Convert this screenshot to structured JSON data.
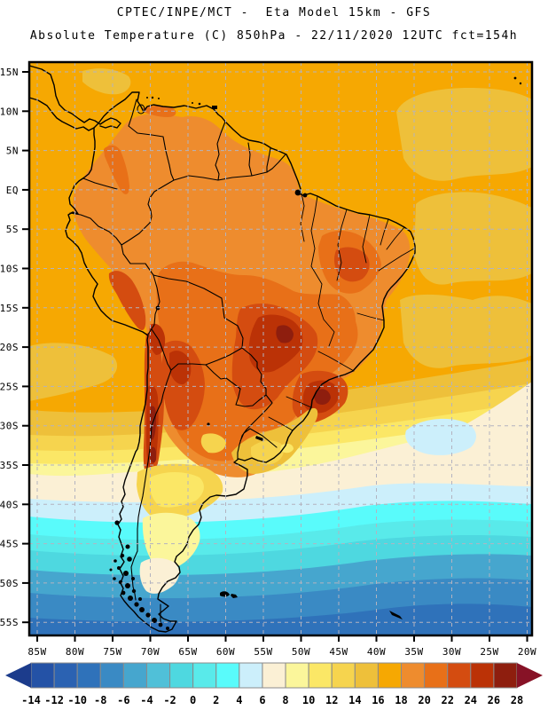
{
  "header": {
    "title_line1": "CPTEC/INPE/MCT -  Eta Model 15km - GFS",
    "title_line2": "Absolute Temperature (C) 850hPa - 22/11/2020 12UTC fct=154h"
  },
  "map": {
    "lat_labels": [
      "15N",
      "10N",
      "5N",
      "EQ",
      "5S",
      "10S",
      "15S",
      "20S",
      "25S",
      "30S",
      "35S",
      "40S",
      "45S",
      "50S",
      "55S"
    ],
    "lon_labels": [
      "85W",
      "80W",
      "75W",
      "70W",
      "65W",
      "60W",
      "55W",
      "50W",
      "45W",
      "40W",
      "35W",
      "30W",
      "25W",
      "20W"
    ],
    "grid_color": "#b3b3c0",
    "line_color": "#000000"
  },
  "colorbar": {
    "unit": "C",
    "tick_labels": [
      "-14",
      "-12",
      "-10",
      "-8",
      "-6",
      "-4",
      "-2",
      "0",
      "2",
      "4",
      "6",
      "8",
      "10",
      "12",
      "14",
      "16",
      "18",
      "20",
      "22",
      "24",
      "26",
      "28"
    ],
    "cell_colors": [
      "#2452a6",
      "#2b62b2",
      "#2f72ba",
      "#3a8ac4",
      "#46a6ce",
      "#50c0d8",
      "#4ed8e0",
      "#59eaea",
      "#59fbfb",
      "#cceffb",
      "#fbf0d5",
      "#fbf69b",
      "#fbe766",
      "#f6d44e",
      "#eec03a",
      "#f6a802",
      "#ee8c2e",
      "#e87018",
      "#d44c10",
      "#bb3206",
      "#8e1e0e"
    ],
    "left_arrow_color": "#1c3c8c",
    "right_arrow_color": "#871226"
  }
}
